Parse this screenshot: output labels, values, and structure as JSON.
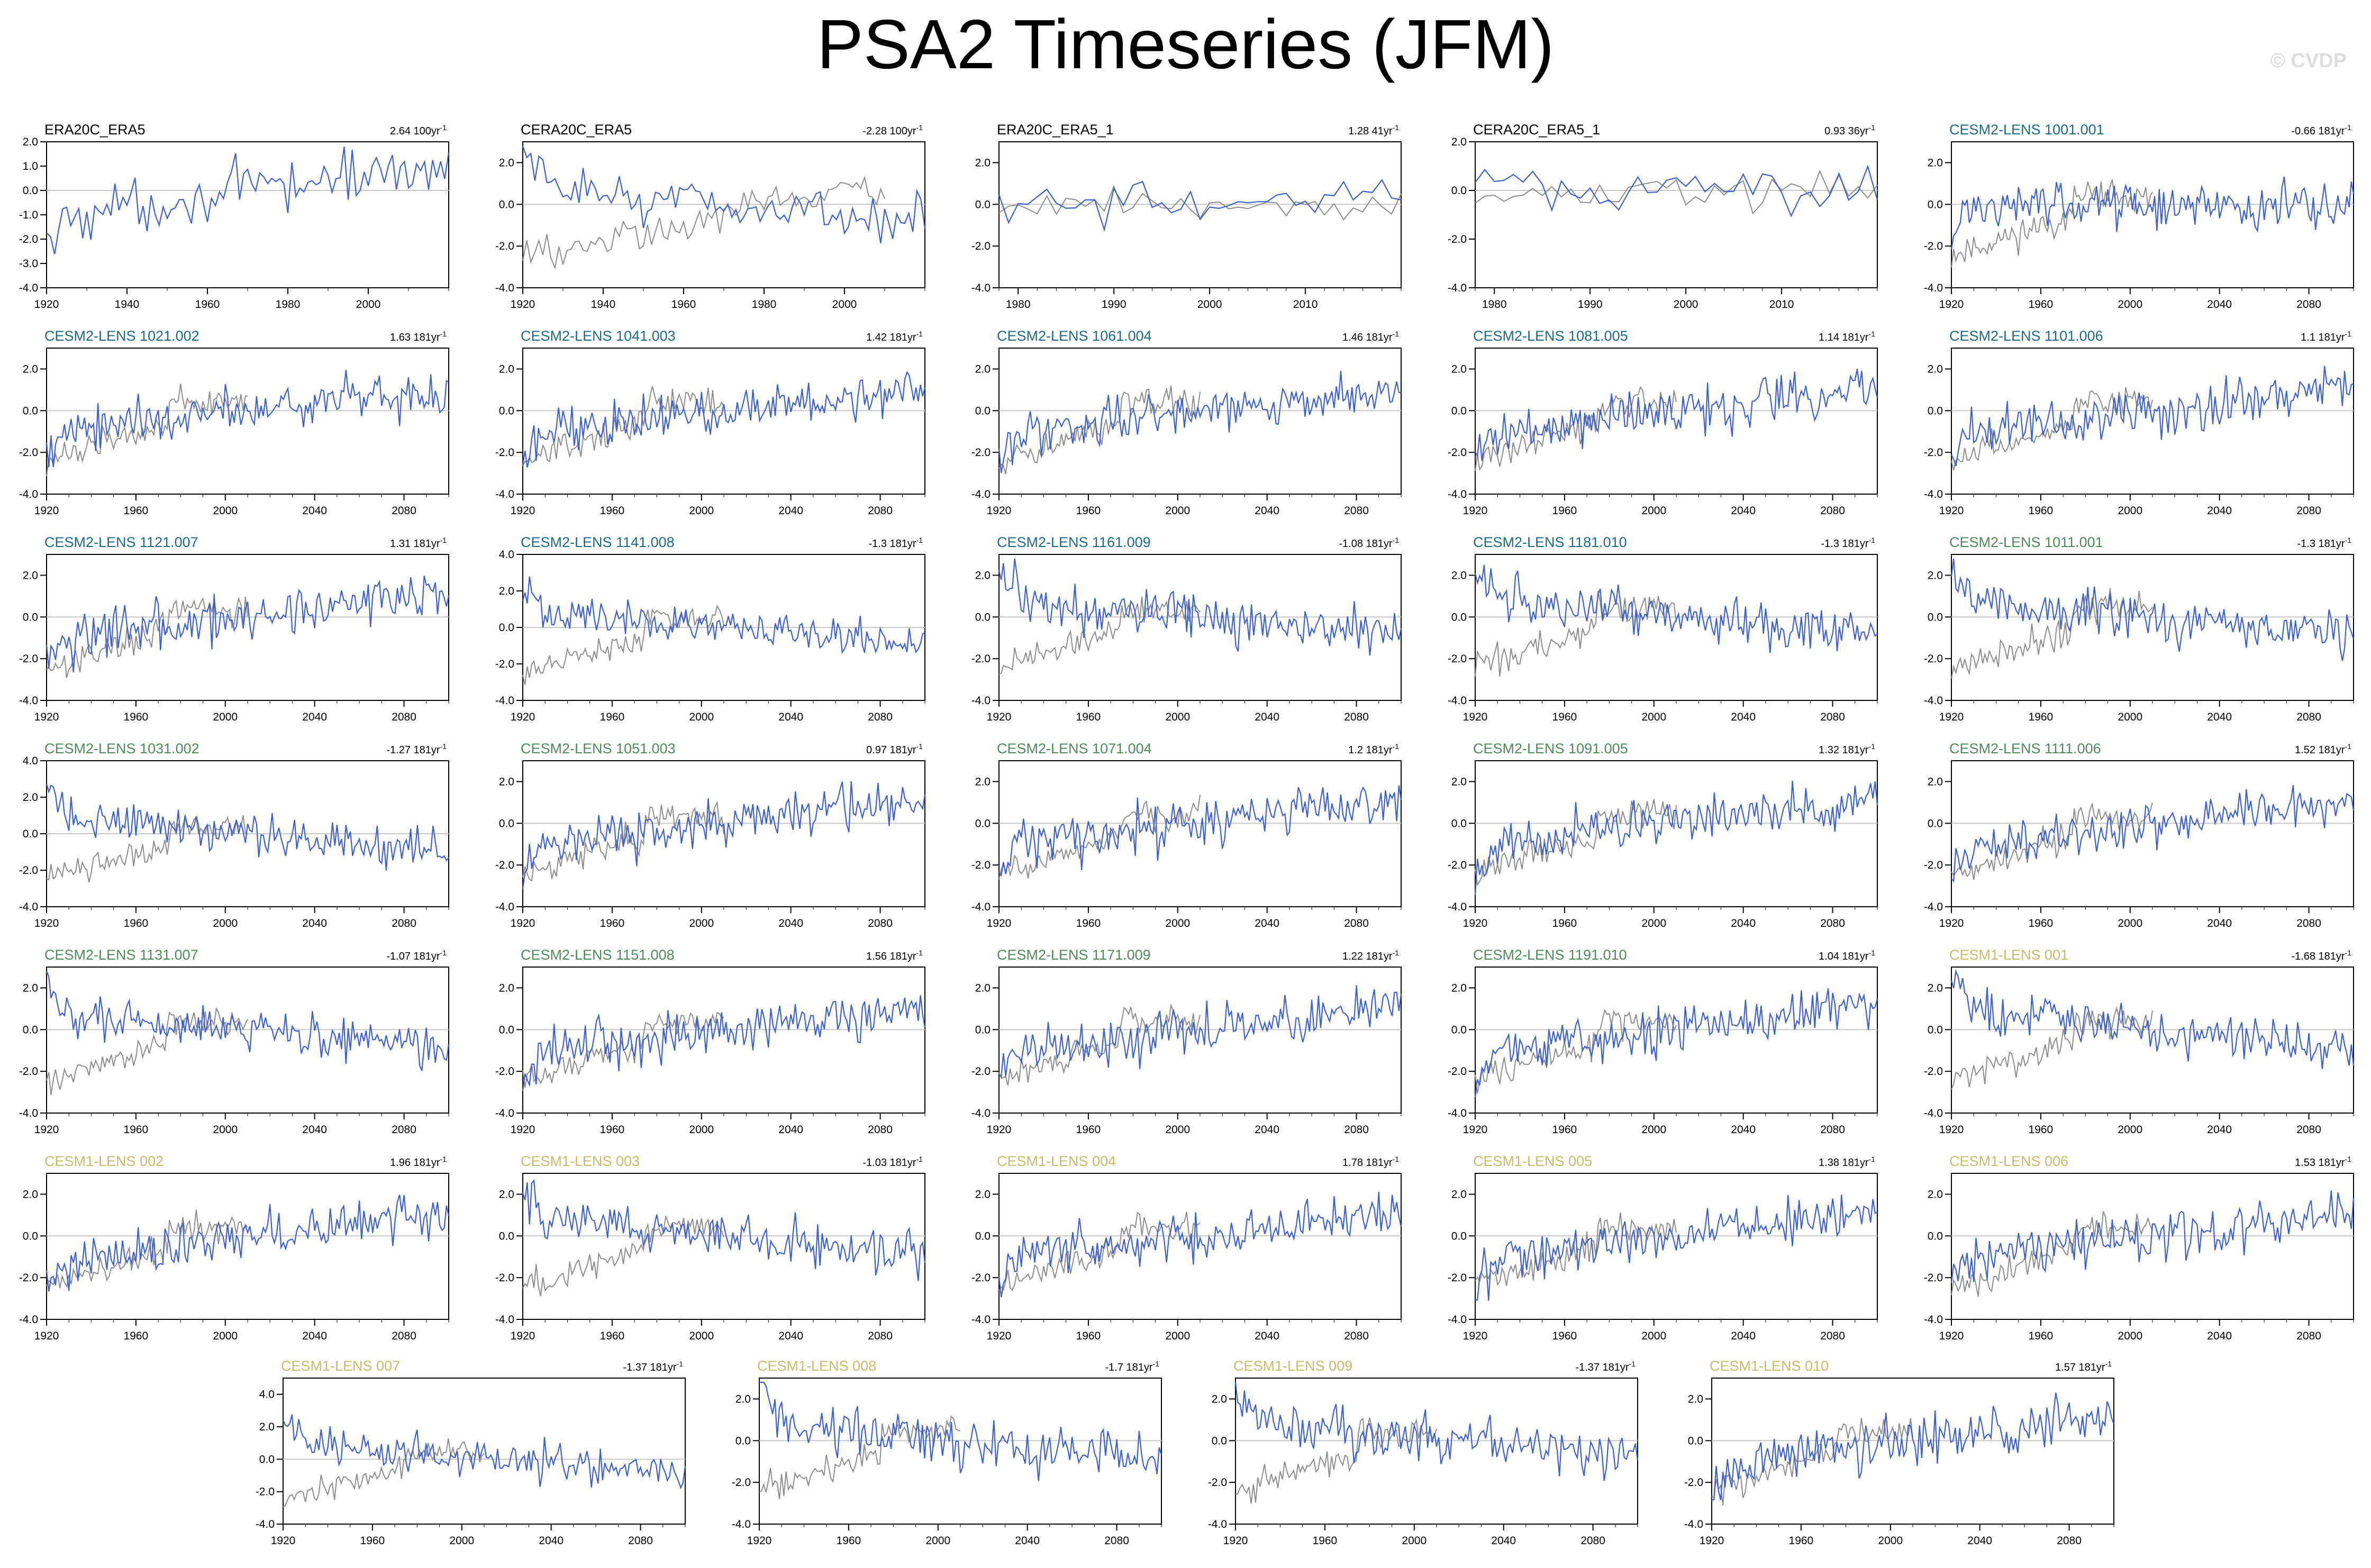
{
  "title": "PSA2 Timeseries (JFM)",
  "watermark": "© CVDP",
  "colors": {
    "model": "#3a5fd6",
    "obs": "#8c8c8c",
    "zero_line": "#c8c8c8",
    "label_obs": "#000000",
    "label_cesm2_cmip6": "#1b6b8a",
    "label_cesm2_smbb": "#4e8a5e",
    "label_cesm1": "#c8bc6a"
  },
  "chart_data": [
    {
      "name": "ERA20C_ERA5",
      "label_color": "label_obs",
      "trend": "2.64 100yr",
      "x_range": [
        1920,
        2020
      ],
      "x_ticks": [
        "1920",
        "1940",
        "1960",
        "1980",
        "2000"
      ],
      "ylim": [
        -4,
        2
      ],
      "y_ticks": [
        "2.0",
        "1.0",
        "0.0",
        "-1.0",
        "-2.0",
        "-3.0",
        "-4.0"
      ],
      "obs": false,
      "trend_dir": "up"
    },
    {
      "name": "CERA20C_ERA5",
      "label_color": "label_obs",
      "trend": "-2.28 100yr",
      "x_range": [
        1920,
        2020
      ],
      "x_ticks": [
        "1920",
        "1940",
        "1960",
        "1980",
        "2000"
      ],
      "ylim": [
        -4,
        3
      ],
      "y_ticks": [
        "2.0",
        "0.0",
        "-2.0",
        "-4.0"
      ],
      "obs": true,
      "trend_dir": "down"
    },
    {
      "name": "ERA20C_ERA5_1",
      "label_color": "label_obs",
      "trend": "1.28 41yr",
      "x_range": [
        1978,
        2020
      ],
      "x_ticks": [
        "1980",
        "1990",
        "2000",
        "2010"
      ],
      "ylim": [
        -4,
        3
      ],
      "y_ticks": [
        "2.0",
        "0.0",
        "-2.0",
        "-4.0"
      ],
      "obs": true,
      "trend_dir": "flat"
    },
    {
      "name": "CERA20C_ERA5_1",
      "label_color": "label_obs",
      "trend": "0.93 36yr",
      "x_range": [
        1978,
        2020
      ],
      "x_ticks": [
        "1980",
        "1990",
        "2000",
        "2010"
      ],
      "ylim": [
        -4,
        2
      ],
      "y_ticks": [
        "2.0",
        "0.0",
        "-2.0",
        "-4.0"
      ],
      "obs": true,
      "trend_dir": "flat"
    },
    {
      "name": "CESM2-LENS 1001.001",
      "label_color": "label_cesm2_cmip6",
      "trend": "-0.66 181yr",
      "x_range": [
        1920,
        2100
      ],
      "x_ticks": [
        "1920",
        "1960",
        "2000",
        "2040",
        "2080"
      ],
      "ylim": [
        -4,
        3
      ],
      "y_ticks": [
        "2.0",
        "0.0",
        "-2.0",
        "-4.0"
      ],
      "obs": true,
      "trend_dir": "flat"
    },
    {
      "name": "CESM2-LENS 1021.002",
      "label_color": "label_cesm2_cmip6",
      "trend": "1.63 181yr",
      "x_range": [
        1920,
        2100
      ],
      "x_ticks": [
        "1920",
        "1960",
        "2000",
        "2040",
        "2080"
      ],
      "ylim": [
        -4,
        3
      ],
      "y_ticks": [
        "2.0",
        "0.0",
        "-2.0",
        "-4.0"
      ],
      "obs": true,
      "trend_dir": "up"
    },
    {
      "name": "CESM2-LENS 1041.003",
      "label_color": "label_cesm2_cmip6",
      "trend": "1.42 181yr",
      "x_range": [
        1920,
        2100
      ],
      "x_ticks": [
        "1920",
        "1960",
        "2000",
        "2040",
        "2080"
      ],
      "ylim": [
        -4,
        3
      ],
      "y_ticks": [
        "2.0",
        "0.0",
        "-2.0",
        "-4.0"
      ],
      "obs": true,
      "trend_dir": "up"
    },
    {
      "name": "CESM2-LENS 1061.004",
      "label_color": "label_cesm2_cmip6",
      "trend": "1.46 181yr",
      "x_range": [
        1920,
        2100
      ],
      "x_ticks": [
        "1920",
        "1960",
        "2000",
        "2040",
        "2080"
      ],
      "ylim": [
        -4,
        3
      ],
      "y_ticks": [
        "2.0",
        "0.0",
        "-2.0",
        "-4.0"
      ],
      "obs": true,
      "trend_dir": "up"
    },
    {
      "name": "CESM2-LENS 1081.005",
      "label_color": "label_cesm2_cmip6",
      "trend": "1.14 181yr",
      "x_range": [
        1920,
        2100
      ],
      "x_ticks": [
        "1920",
        "1960",
        "2000",
        "2040",
        "2080"
      ],
      "ylim": [
        -4,
        3
      ],
      "y_ticks": [
        "2.0",
        "0.0",
        "-2.0",
        "-4.0"
      ],
      "obs": true,
      "trend_dir": "up"
    },
    {
      "name": "CESM2-LENS 1101.006",
      "label_color": "label_cesm2_cmip6",
      "trend": "1.1 181yr",
      "x_range": [
        1920,
        2100
      ],
      "x_ticks": [
        "1920",
        "1960",
        "2000",
        "2040",
        "2080"
      ],
      "ylim": [
        -4,
        3
      ],
      "y_ticks": [
        "2.0",
        "0.0",
        "-2.0",
        "-4.0"
      ],
      "obs": true,
      "trend_dir": "up"
    },
    {
      "name": "CESM2-LENS 1121.007",
      "label_color": "label_cesm2_cmip6",
      "trend": "1.31 181yr",
      "x_range": [
        1920,
        2100
      ],
      "x_ticks": [
        "1920",
        "1960",
        "2000",
        "2040",
        "2080"
      ],
      "ylim": [
        -4,
        3
      ],
      "y_ticks": [
        "2.0",
        "0.0",
        "-2.0",
        "-4.0"
      ],
      "obs": true,
      "trend_dir": "up"
    },
    {
      "name": "CESM2-LENS 1141.008",
      "label_color": "label_cesm2_cmip6",
      "trend": "-1.3 181yr",
      "x_range": [
        1920,
        2100
      ],
      "x_ticks": [
        "1920",
        "1960",
        "2000",
        "2040",
        "2080"
      ],
      "ylim": [
        -4,
        4
      ],
      "y_ticks": [
        "4.0",
        "2.0",
        "0.0",
        "-2.0",
        "-4.0"
      ],
      "obs": true,
      "trend_dir": "down"
    },
    {
      "name": "CESM2-LENS 1161.009",
      "label_color": "label_cesm2_cmip6",
      "trend": "-1.08 181yr",
      "x_range": [
        1920,
        2100
      ],
      "x_ticks": [
        "1920",
        "1960",
        "2000",
        "2040",
        "2080"
      ],
      "ylim": [
        -4,
        3
      ],
      "y_ticks": [
        "2.0",
        "0.0",
        "-2.0",
        "-4.0"
      ],
      "obs": true,
      "trend_dir": "down"
    },
    {
      "name": "CESM2-LENS 1181.010",
      "label_color": "label_cesm2_cmip6",
      "trend": "-1.3 181yr",
      "x_range": [
        1920,
        2100
      ],
      "x_ticks": [
        "1920",
        "1960",
        "2000",
        "2040",
        "2080"
      ],
      "ylim": [
        -4,
        3
      ],
      "y_ticks": [
        "2.0",
        "0.0",
        "-2.0",
        "-4.0"
      ],
      "obs": true,
      "trend_dir": "down"
    },
    {
      "name": "CESM2-LENS 1011.001",
      "label_color": "label_cesm2_smbb",
      "trend": "-1.3 181yr",
      "x_range": [
        1920,
        2100
      ],
      "x_ticks": [
        "1920",
        "1960",
        "2000",
        "2040",
        "2080"
      ],
      "ylim": [
        -4,
        3
      ],
      "y_ticks": [
        "2.0",
        "0.0",
        "-2.0",
        "-4.0"
      ],
      "obs": true,
      "trend_dir": "down"
    },
    {
      "name": "CESM2-LENS 1031.002",
      "label_color": "label_cesm2_smbb",
      "trend": "-1.27 181yr",
      "x_range": [
        1920,
        2100
      ],
      "x_ticks": [
        "1920",
        "1960",
        "2000",
        "2040",
        "2080"
      ],
      "ylim": [
        -4,
        4
      ],
      "y_ticks": [
        "4.0",
        "2.0",
        "0.0",
        "-2.0",
        "-4.0"
      ],
      "obs": true,
      "trend_dir": "down"
    },
    {
      "name": "CESM2-LENS 1051.003",
      "label_color": "label_cesm2_smbb",
      "trend": "0.97 181yr",
      "x_range": [
        1920,
        2100
      ],
      "x_ticks": [
        "1920",
        "1960",
        "2000",
        "2040",
        "2080"
      ],
      "ylim": [
        -4,
        3
      ],
      "y_ticks": [
        "2.0",
        "0.0",
        "-2.0",
        "-4.0"
      ],
      "obs": true,
      "trend_dir": "up"
    },
    {
      "name": "CESM2-LENS 1071.004",
      "label_color": "label_cesm2_smbb",
      "trend": "1.2 181yr",
      "x_range": [
        1920,
        2100
      ],
      "x_ticks": [
        "1920",
        "1960",
        "2000",
        "2040",
        "2080"
      ],
      "ylim": [
        -4,
        3
      ],
      "y_ticks": [
        "2.0",
        "0.0",
        "-2.0",
        "-4.0"
      ],
      "obs": true,
      "trend_dir": "up"
    },
    {
      "name": "CESM2-LENS 1091.005",
      "label_color": "label_cesm2_smbb",
      "trend": "1.32 181yr",
      "x_range": [
        1920,
        2100
      ],
      "x_ticks": [
        "1920",
        "1960",
        "2000",
        "2040",
        "2080"
      ],
      "ylim": [
        -4,
        3
      ],
      "y_ticks": [
        "2.0",
        "0.0",
        "-2.0",
        "-4.0"
      ],
      "obs": true,
      "trend_dir": "up"
    },
    {
      "name": "CESM2-LENS 1111.006",
      "label_color": "label_cesm2_smbb",
      "trend": "1.52 181yr",
      "x_range": [
        1920,
        2100
      ],
      "x_ticks": [
        "1920",
        "1960",
        "2000",
        "2040",
        "2080"
      ],
      "ylim": [
        -4,
        3
      ],
      "y_ticks": [
        "2.0",
        "0.0",
        "-2.0",
        "-4.0"
      ],
      "obs": true,
      "trend_dir": "up"
    },
    {
      "name": "CESM2-LENS 1131.007",
      "label_color": "label_cesm2_smbb",
      "trend": "-1.07 181yr",
      "x_range": [
        1920,
        2100
      ],
      "x_ticks": [
        "1920",
        "1960",
        "2000",
        "2040",
        "2080"
      ],
      "ylim": [
        -4,
        3
      ],
      "y_ticks": [
        "2.0",
        "0.0",
        "-2.0",
        "-4.0"
      ],
      "obs": true,
      "trend_dir": "down"
    },
    {
      "name": "CESM2-LENS 1151.008",
      "label_color": "label_cesm2_smbb",
      "trend": "1.56 181yr",
      "x_range": [
        1920,
        2100
      ],
      "x_ticks": [
        "1920",
        "1960",
        "2000",
        "2040",
        "2080"
      ],
      "ylim": [
        -4,
        3
      ],
      "y_ticks": [
        "2.0",
        "0.0",
        "-2.0",
        "-4.0"
      ],
      "obs": true,
      "trend_dir": "up"
    },
    {
      "name": "CESM2-LENS 1171.009",
      "label_color": "label_cesm2_smbb",
      "trend": "1.22 181yr",
      "x_range": [
        1920,
        2100
      ],
      "x_ticks": [
        "1920",
        "1960",
        "2000",
        "2040",
        "2080"
      ],
      "ylim": [
        -4,
        3
      ],
      "y_ticks": [
        "2.0",
        "0.0",
        "-2.0",
        "-4.0"
      ],
      "obs": true,
      "trend_dir": "up"
    },
    {
      "name": "CESM2-LENS 1191.010",
      "label_color": "label_cesm2_smbb",
      "trend": "1.04 181yr",
      "x_range": [
        1920,
        2100
      ],
      "x_ticks": [
        "1920",
        "1960",
        "2000",
        "2040",
        "2080"
      ],
      "ylim": [
        -4,
        3
      ],
      "y_ticks": [
        "2.0",
        "0.0",
        "-2.0",
        "-4.0"
      ],
      "obs": true,
      "trend_dir": "up"
    },
    {
      "name": "CESM1-LENS 001",
      "label_color": "label_cesm1",
      "trend": "-1.68 181yr",
      "x_range": [
        1920,
        2100
      ],
      "x_ticks": [
        "1920",
        "1960",
        "2000",
        "2040",
        "2080"
      ],
      "ylim": [
        -4,
        3
      ],
      "y_ticks": [
        "2.0",
        "0.0",
        "-2.0",
        "-4.0"
      ],
      "obs": true,
      "trend_dir": "down"
    },
    {
      "name": "CESM1-LENS 002",
      "label_color": "label_cesm1",
      "trend": "1.96 181yr",
      "x_range": [
        1920,
        2100
      ],
      "x_ticks": [
        "1920",
        "1960",
        "2000",
        "2040",
        "2080"
      ],
      "ylim": [
        -4,
        3
      ],
      "y_ticks": [
        "2.0",
        "0.0",
        "-2.0",
        "-4.0"
      ],
      "obs": true,
      "trend_dir": "up"
    },
    {
      "name": "CESM1-LENS 003",
      "label_color": "label_cesm1",
      "trend": "-1.03 181yr",
      "x_range": [
        1920,
        2100
      ],
      "x_ticks": [
        "1920",
        "1960",
        "2000",
        "2040",
        "2080"
      ],
      "ylim": [
        -4,
        3
      ],
      "y_ticks": [
        "2.0",
        "0.0",
        "-2.0",
        "-4.0"
      ],
      "obs": true,
      "trend_dir": "down"
    },
    {
      "name": "CESM1-LENS 004",
      "label_color": "label_cesm1",
      "trend": "1.78 181yr",
      "x_range": [
        1920,
        2100
      ],
      "x_ticks": [
        "1920",
        "1960",
        "2000",
        "2040",
        "2080"
      ],
      "ylim": [
        -4,
        3
      ],
      "y_ticks": [
        "2.0",
        "0.0",
        "-2.0",
        "-4.0"
      ],
      "obs": true,
      "trend_dir": "up"
    },
    {
      "name": "CESM1-LENS 005",
      "label_color": "label_cesm1",
      "trend": "1.38 181yr",
      "x_range": [
        1920,
        2100
      ],
      "x_ticks": [
        "1920",
        "1960",
        "2000",
        "2040",
        "2080"
      ],
      "ylim": [
        -4,
        3
      ],
      "y_ticks": [
        "2.0",
        "0.0",
        "-2.0",
        "-4.0"
      ],
      "obs": true,
      "trend_dir": "up"
    },
    {
      "name": "CESM1-LENS 006",
      "label_color": "label_cesm1",
      "trend": "1.53 181yr",
      "x_range": [
        1920,
        2100
      ],
      "x_ticks": [
        "1920",
        "1960",
        "2000",
        "2040",
        "2080"
      ],
      "ylim": [
        -4,
        3
      ],
      "y_ticks": [
        "2.0",
        "0.0",
        "-2.0",
        "-4.0"
      ],
      "obs": true,
      "trend_dir": "up"
    },
    {
      "name": "CESM1-LENS 007",
      "label_color": "label_cesm1",
      "trend": "-1.37 181yr",
      "x_range": [
        1920,
        2100
      ],
      "x_ticks": [
        "1920",
        "1960",
        "2000",
        "2040",
        "2080"
      ],
      "ylim": [
        -4,
        5
      ],
      "y_ticks": [
        "4.0",
        "2.0",
        "0.0",
        "-2.0",
        "-4.0"
      ],
      "obs": true,
      "trend_dir": "down"
    },
    {
      "name": "CESM1-LENS 008",
      "label_color": "label_cesm1",
      "trend": "-1.7 181yr",
      "x_range": [
        1920,
        2100
      ],
      "x_ticks": [
        "1920",
        "1960",
        "2000",
        "2040",
        "2080"
      ],
      "ylim": [
        -4,
        3
      ],
      "y_ticks": [
        "2.0",
        "0.0",
        "-2.0",
        "-4.0"
      ],
      "obs": true,
      "trend_dir": "down"
    },
    {
      "name": "CESM1-LENS 009",
      "label_color": "label_cesm1",
      "trend": "-1.37 181yr",
      "x_range": [
        1920,
        2100
      ],
      "x_ticks": [
        "1920",
        "1960",
        "2000",
        "2040",
        "2080"
      ],
      "ylim": [
        -4,
        3
      ],
      "y_ticks": [
        "2.0",
        "0.0",
        "-2.0",
        "-4.0"
      ],
      "obs": true,
      "trend_dir": "down"
    },
    {
      "name": "CESM1-LENS 010",
      "label_color": "label_cesm1",
      "trend": "1.57 181yr",
      "x_range": [
        1920,
        2100
      ],
      "x_ticks": [
        "1920",
        "1960",
        "2000",
        "2040",
        "2080"
      ],
      "ylim": [
        -4,
        3
      ],
      "y_ticks": [
        "2.0",
        "0.0",
        "-2.0",
        "-4.0"
      ],
      "obs": true,
      "trend_dir": "up"
    }
  ]
}
